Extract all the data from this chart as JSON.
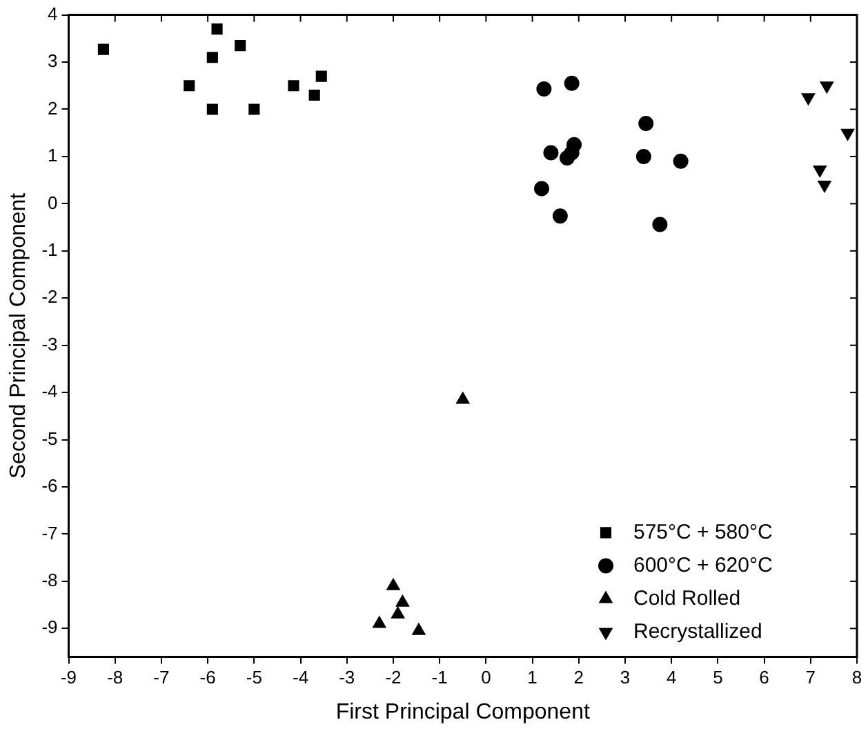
{
  "chart_data": {
    "type": "scatter",
    "xlabel": "First Principal Component",
    "ylabel": "Second Principal Component",
    "xlim": [
      -9,
      8
    ],
    "ylim": [
      -9.6,
      4
    ],
    "xticks": [
      -9,
      -8,
      -7,
      -6,
      -5,
      -4,
      -3,
      -2,
      -1,
      0,
      1,
      2,
      3,
      4,
      5,
      6,
      7,
      8
    ],
    "yticks": [
      -9,
      -8,
      -7,
      -6,
      -5,
      -4,
      -3,
      -2,
      -1,
      0,
      1,
      2,
      3,
      4
    ],
    "grid": false,
    "legend": "bottom right",
    "series": [
      {
        "name": "575°C + 580°C",
        "color": "#000000",
        "marker": "square",
        "x": [
          -8.25,
          -5.8,
          -5.9,
          -5.3,
          -6.4,
          -5.9,
          -5.0,
          -4.15,
          -3.7,
          -3.55
        ],
        "values": [
          3.27,
          3.7,
          3.1,
          3.35,
          2.5,
          2.0,
          2.0,
          2.5,
          2.3,
          2.7
        ]
      },
      {
        "name": "600°C + 620°C",
        "color": "#000000",
        "marker": "circle",
        "x": [
          1.25,
          1.85,
          3.45,
          1.4,
          1.9,
          1.75,
          1.85,
          3.4,
          4.2,
          1.2,
          1.6,
          3.75
        ],
        "values": [
          2.43,
          2.55,
          1.7,
          1.08,
          1.25,
          0.97,
          1.08,
          1.0,
          0.9,
          0.32,
          -0.26,
          -0.44
        ]
      },
      {
        "name": "Cold Rolled",
        "color": "#000000",
        "marker": "triangle",
        "x": [
          -0.5,
          -2.0,
          -1.8,
          -1.9,
          -2.3,
          -1.45
        ],
        "values": [
          -4.15,
          -8.1,
          -8.45,
          -8.7,
          -8.9,
          -9.05
        ]
      },
      {
        "name": "Recrystallized",
        "color": "#000000",
        "marker": "triangle-down",
        "x": [
          6.95,
          7.35,
          7.8,
          7.2,
          7.3
        ],
        "values": [
          2.25,
          2.5,
          1.5,
          0.72,
          0.4
        ]
      }
    ]
  }
}
